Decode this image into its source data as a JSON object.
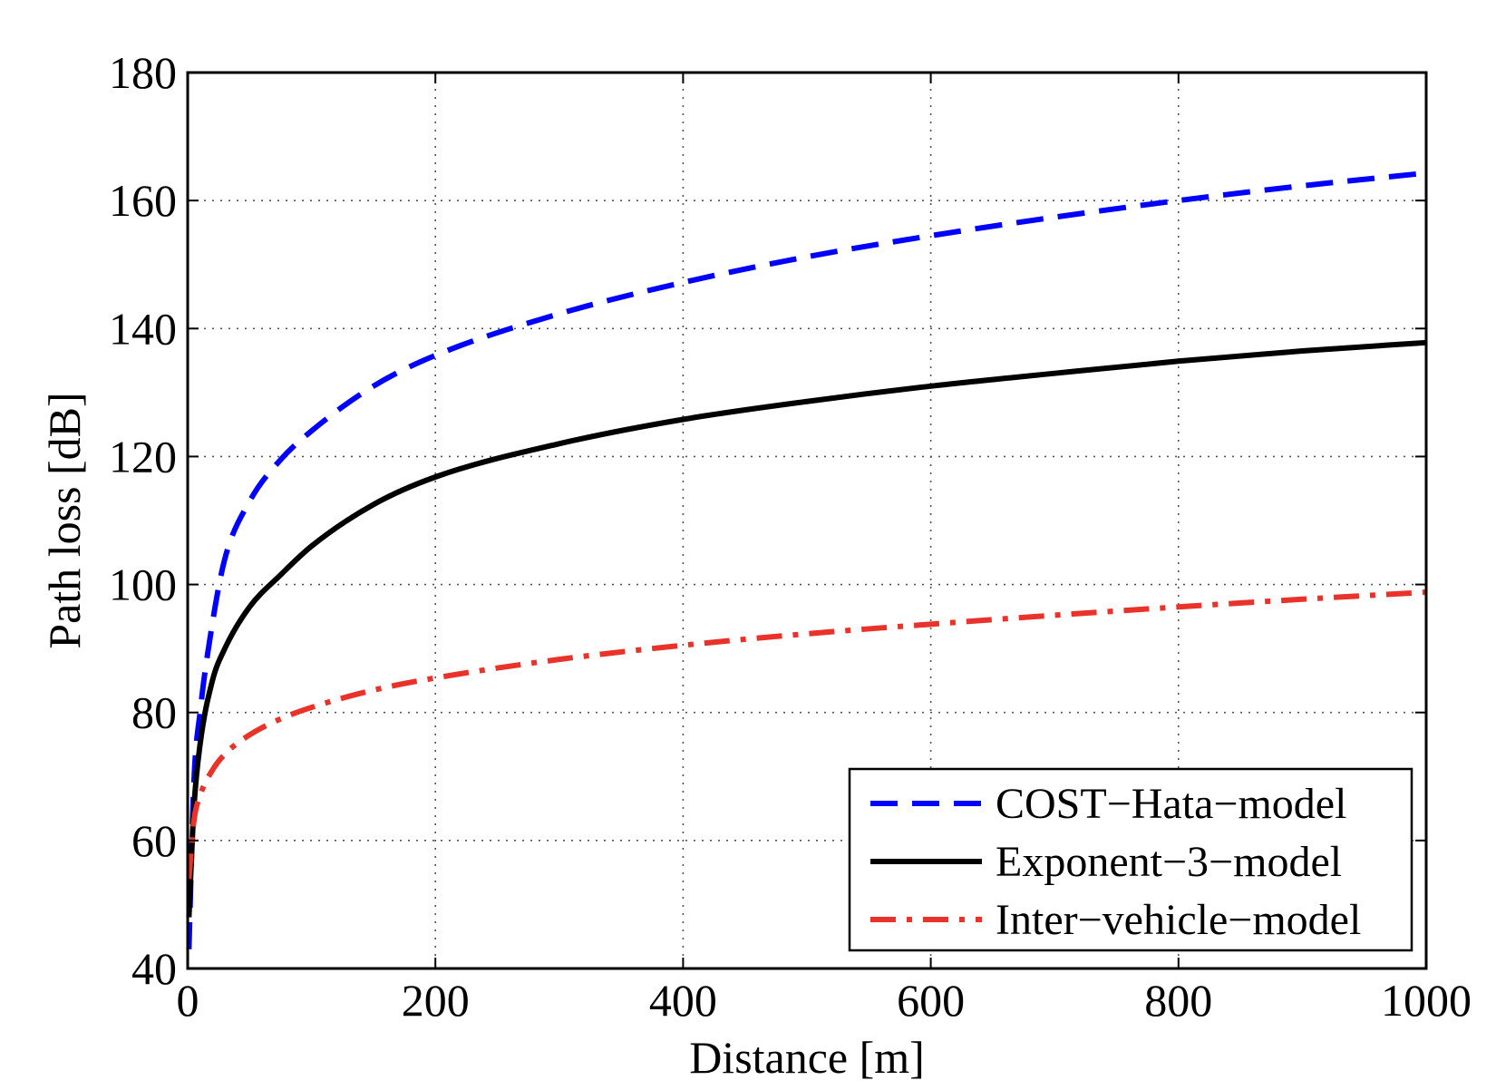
{
  "chart_data": {
    "type": "line",
    "title": "",
    "xlabel": "Distance [m]",
    "ylabel": "Path loss [dB]",
    "xlim": [
      0,
      1000
    ],
    "ylim": [
      40,
      180
    ],
    "xticks": [
      0,
      200,
      400,
      600,
      800,
      1000
    ],
    "yticks": [
      40,
      60,
      80,
      100,
      120,
      140,
      160,
      180
    ],
    "xtick_labels": [
      "0",
      "200",
      "400",
      "600",
      "800",
      "1000"
    ],
    "ytick_labels": [
      "40",
      "60",
      "80",
      "100",
      "120",
      "140",
      "160",
      "180"
    ],
    "grid": true,
    "legend_position": "bottom-right",
    "series": [
      {
        "name": "COST−Hata−model",
        "color": "#0000ff",
        "style": "dashed",
        "x": [
          1,
          5,
          10,
          20,
          30,
          50,
          75,
          100,
          150,
          200,
          300,
          400,
          500,
          600,
          700,
          800,
          900,
          1000
        ],
        "y": [
          43,
          69,
          80,
          94,
          104,
          113,
          119.5,
          124,
          131,
          135.8,
          142.3,
          147.2,
          151.2,
          154.5,
          157.4,
          160,
          162.3,
          164.3
        ]
      },
      {
        "name": "Exponent−3−model",
        "color": "#000000",
        "style": "solid",
        "x": [
          1,
          5,
          10,
          20,
          30,
          50,
          75,
          100,
          150,
          200,
          300,
          400,
          500,
          600,
          700,
          800,
          900,
          1000
        ],
        "y": [
          48,
          65,
          75,
          85,
          90,
          96.5,
          101.5,
          106,
          112.5,
          116.8,
          122,
          125.8,
          128.6,
          131,
          133,
          134.9,
          136.5,
          137.8
        ]
      },
      {
        "name": "Inter−vehicle−model",
        "color": "#e8322a",
        "style": "dashdot",
        "x": [
          1,
          5,
          10,
          20,
          30,
          50,
          75,
          100,
          150,
          200,
          300,
          400,
          500,
          600,
          700,
          800,
          900,
          1000
        ],
        "y": [
          54,
          63,
          67,
          71,
          73.5,
          76.5,
          79,
          80.8,
          83.5,
          85.4,
          88.3,
          90.5,
          92.3,
          93.8,
          95.2,
          96.5,
          97.7,
          98.8
        ]
      }
    ]
  }
}
